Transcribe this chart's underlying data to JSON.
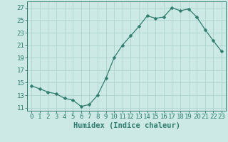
{
  "x": [
    0,
    1,
    2,
    3,
    4,
    5,
    6,
    7,
    8,
    9,
    10,
    11,
    12,
    13,
    14,
    15,
    16,
    17,
    18,
    19,
    20,
    21,
    22,
    23
  ],
  "y": [
    14.5,
    14.0,
    13.5,
    13.2,
    12.5,
    12.2,
    11.2,
    11.5,
    13.0,
    15.7,
    19.0,
    21.0,
    22.5,
    24.0,
    25.7,
    25.3,
    25.5,
    27.0,
    26.5,
    26.8,
    25.5,
    23.5,
    21.7,
    20.0
  ],
  "xlabel": "Humidex (Indice chaleur)",
  "xlim": [
    -0.5,
    23.5
  ],
  "ylim": [
    10.5,
    28.0
  ],
  "yticks": [
    11,
    13,
    15,
    17,
    19,
    21,
    23,
    25,
    27
  ],
  "xticks": [
    0,
    1,
    2,
    3,
    4,
    5,
    6,
    7,
    8,
    9,
    10,
    11,
    12,
    13,
    14,
    15,
    16,
    17,
    18,
    19,
    20,
    21,
    22,
    23
  ],
  "line_color": "#2e7d6e",
  "marker": "D",
  "marker_size": 2.5,
  "bg_color": "#cce9e5",
  "grid_color": "#aed4cf",
  "axis_color": "#2e7d6e",
  "tick_label_fontsize": 6.5,
  "xlabel_fontsize": 7.5
}
